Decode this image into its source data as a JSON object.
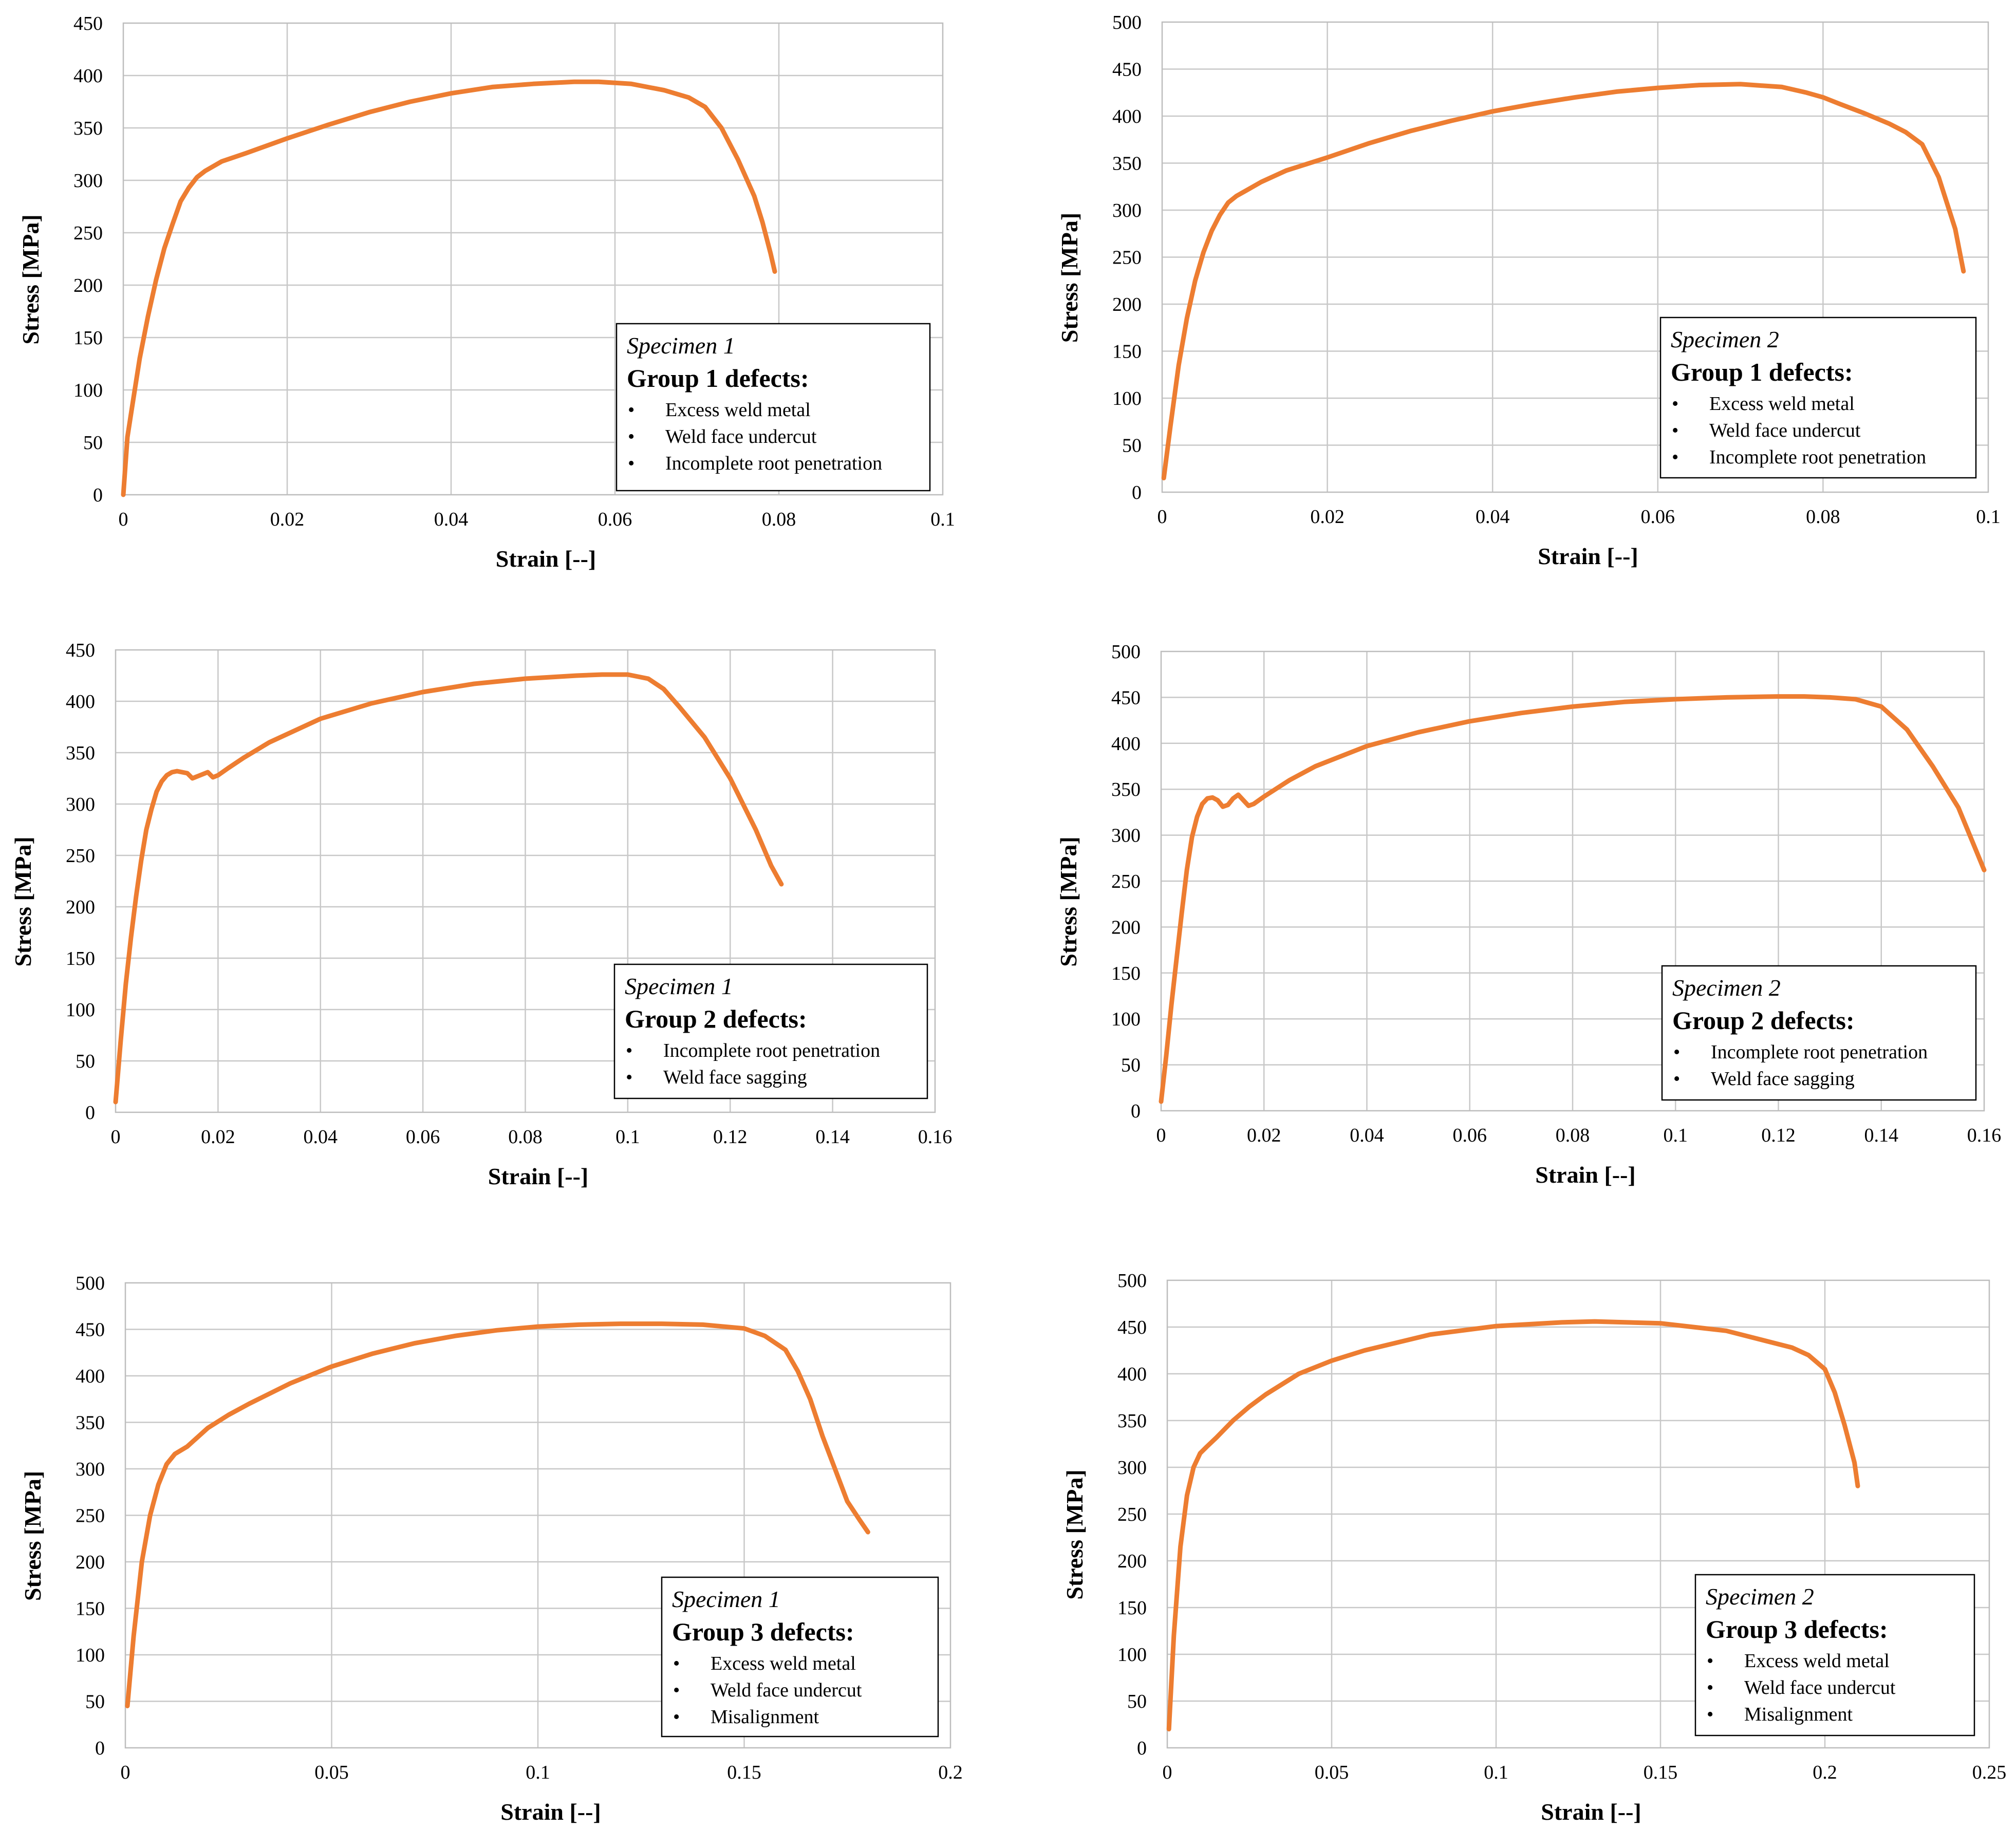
{
  "colors": {
    "curve": "#ED7D31",
    "grid": "#C8C8C8",
    "text": "#000000",
    "background": "#FFFFFF"
  },
  "chart_data": [
    {
      "type": "line",
      "xlabel": "Strain [--]",
      "ylabel": "Stress [MPa]",
      "xlim": [
        0,
        0.1
      ],
      "ylim": [
        0,
        450
      ],
      "x_ticks": [
        0,
        0.02,
        0.04,
        0.06,
        0.08,
        0.1
      ],
      "x_tick_labels": [
        "0",
        "0.02",
        "0.04",
        "0.06",
        "0.08",
        "0.1"
      ],
      "y_ticks": [
        0,
        50,
        100,
        150,
        200,
        250,
        300,
        350,
        400,
        450
      ],
      "y_tick_labels": [
        "0",
        "50",
        "100",
        "150",
        "200",
        "250",
        "300",
        "350",
        "400",
        "450"
      ],
      "grid": true,
      "legend": {
        "placement": "bottom-right",
        "specimen": "Specimen 1",
        "group": "Group 1 defects:",
        "items": [
          "Excess weld metal",
          "Weld face undercut",
          "Incomplete root penetration"
        ]
      },
      "series": [
        {
          "name": "Specimen 1",
          "x": [
            0,
            0.0005,
            0.001,
            0.002,
            0.003,
            0.004,
            0.005,
            0.006,
            0.007,
            0.008,
            0.009,
            0.01,
            0.012,
            0.015,
            0.02,
            0.025,
            0.03,
            0.035,
            0.04,
            0.045,
            0.05,
            0.055,
            0.058,
            0.062,
            0.066,
            0.069,
            0.071,
            0.073,
            0.075,
            0.077,
            0.078,
            0.079,
            0.0795
          ],
          "y": [
            0,
            55,
            80,
            130,
            170,
            205,
            235,
            258,
            280,
            293,
            303,
            309,
            318,
            326,
            340,
            353,
            365,
            375,
            383,
            389,
            392,
            394,
            394,
            392,
            386,
            379,
            370,
            350,
            320,
            285,
            260,
            230,
            213
          ]
        }
      ]
    },
    {
      "type": "line",
      "xlabel": "Strain [--]",
      "ylabel": "Stress [MPa]",
      "xlim": [
        0,
        0.1
      ],
      "ylim": [
        0,
        500
      ],
      "x_ticks": [
        0,
        0.02,
        0.04,
        0.06,
        0.08,
        0.1
      ],
      "x_tick_labels": [
        "0",
        "0.02",
        "0.04",
        "0.06",
        "0.08",
        "0.1"
      ],
      "y_ticks": [
        0,
        50,
        100,
        150,
        200,
        250,
        300,
        350,
        400,
        450,
        500
      ],
      "y_tick_labels": [
        "0",
        "50",
        "100",
        "150",
        "200",
        "250",
        "300",
        "350",
        "400",
        "450",
        "500"
      ],
      "grid": true,
      "legend": {
        "placement": "bottom-right",
        "specimen": "Specimen 2",
        "group": "Group 1 defects:",
        "items": [
          "Excess weld metal",
          "Weld face undercut",
          "Incomplete root penetration"
        ]
      },
      "series": [
        {
          "name": "Specimen 2",
          "x": [
            0.0002,
            0.001,
            0.002,
            0.003,
            0.004,
            0.005,
            0.006,
            0.007,
            0.008,
            0.009,
            0.01,
            0.012,
            0.015,
            0.02,
            0.025,
            0.03,
            0.035,
            0.04,
            0.045,
            0.05,
            0.055,
            0.06,
            0.065,
            0.07,
            0.075,
            0.078,
            0.08,
            0.082,
            0.085,
            0.088,
            0.09,
            0.092,
            0.094,
            0.096,
            0.097
          ],
          "y": [
            15,
            70,
            135,
            185,
            225,
            255,
            278,
            295,
            308,
            315,
            320,
            330,
            342,
            356,
            371,
            384,
            395,
            405,
            413,
            420,
            426,
            430,
            433,
            434,
            431,
            425,
            420,
            413,
            403,
            392,
            383,
            370,
            335,
            280,
            235
          ]
        }
      ]
    },
    {
      "type": "line",
      "xlabel": "Strain [--]",
      "ylabel": "Stress [MPa]",
      "xlim": [
        0,
        0.16
      ],
      "ylim": [
        0,
        450
      ],
      "x_ticks": [
        0,
        0.02,
        0.04,
        0.06,
        0.08,
        0.1,
        0.12,
        0.14,
        0.16
      ],
      "x_tick_labels": [
        "0",
        "0.02",
        "0.04",
        "0.06",
        "0.08",
        "0.1",
        "0.12",
        "0.14",
        "0.16"
      ],
      "y_ticks": [
        0,
        50,
        100,
        150,
        200,
        250,
        300,
        350,
        400,
        450
      ],
      "y_tick_labels": [
        "0",
        "50",
        "100",
        "150",
        "200",
        "250",
        "300",
        "350",
        "400",
        "450"
      ],
      "grid": true,
      "legend": {
        "placement": "bottom-right",
        "specimen": "Specimen 1",
        "group": "Group 2 defects:",
        "items": [
          "Incomplete root penetration",
          "Weld face sagging"
        ]
      },
      "series": [
        {
          "name": "Specimen 1",
          "x": [
            0,
            0.001,
            0.002,
            0.003,
            0.004,
            0.005,
            0.006,
            0.007,
            0.008,
            0.009,
            0.01,
            0.011,
            0.012,
            0.014,
            0.015,
            0.016,
            0.018,
            0.019,
            0.02,
            0.022,
            0.025,
            0.03,
            0.04,
            0.05,
            0.06,
            0.07,
            0.08,
            0.09,
            0.095,
            0.1,
            0.104,
            0.107,
            0.11,
            0.115,
            0.12,
            0.125,
            0.128,
            0.13
          ],
          "y": [
            10,
            70,
            125,
            170,
            210,
            245,
            275,
            295,
            312,
            322,
            328,
            331,
            332,
            330,
            325,
            327,
            331,
            326,
            328,
            335,
            345,
            360,
            383,
            398,
            409,
            417,
            422,
            425,
            426,
            426,
            422,
            412,
            395,
            365,
            325,
            275,
            240,
            222
          ]
        }
      ]
    },
    {
      "type": "line",
      "xlabel": "Strain [--]",
      "ylabel": "Stress [MPa]",
      "xlim": [
        0,
        0.16
      ],
      "ylim": [
        0,
        500
      ],
      "x_ticks": [
        0,
        0.02,
        0.04,
        0.06,
        0.08,
        0.1,
        0.12,
        0.14,
        0.16
      ],
      "x_tick_labels": [
        "0",
        "0.02",
        "0.04",
        "0.06",
        "0.08",
        "0.1",
        "0.12",
        "0.14",
        "0.16"
      ],
      "y_ticks": [
        0,
        50,
        100,
        150,
        200,
        250,
        300,
        350,
        400,
        450,
        500
      ],
      "y_tick_labels": [
        "0",
        "50",
        "100",
        "150",
        "200",
        "250",
        "300",
        "350",
        "400",
        "450",
        "500"
      ],
      "grid": true,
      "legend": {
        "placement": "bottom-right",
        "specimen": "Specimen 2",
        "group": "Group 2 defects:",
        "items": [
          "Incomplete root penetration",
          "Weld face sagging"
        ]
      },
      "series": [
        {
          "name": "Specimen 2",
          "x": [
            0,
            0.001,
            0.002,
            0.003,
            0.004,
            0.005,
            0.006,
            0.007,
            0.008,
            0.009,
            0.01,
            0.011,
            0.012,
            0.013,
            0.014,
            0.015,
            0.016,
            0.017,
            0.018,
            0.02,
            0.025,
            0.03,
            0.04,
            0.05,
            0.06,
            0.07,
            0.08,
            0.09,
            0.1,
            0.11,
            0.12,
            0.125,
            0.13,
            0.135,
            0.14,
            0.145,
            0.15,
            0.155,
            0.16
          ],
          "y": [
            10,
            60,
            115,
            165,
            215,
            262,
            298,
            320,
            334,
            340,
            341,
            338,
            331,
            333,
            340,
            344,
            338,
            332,
            334,
            342,
            360,
            375,
            397,
            412,
            424,
            433,
            440,
            445,
            448,
            450,
            451,
            451,
            450,
            448,
            440,
            415,
            375,
            330,
            262
          ]
        }
      ]
    },
    {
      "type": "line",
      "xlabel": "Strain [--]",
      "ylabel": "Stress [MPa]",
      "xlim": [
        0,
        0.2
      ],
      "ylim": [
        0,
        500
      ],
      "x_ticks": [
        0,
        0.05,
        0.1,
        0.15,
        0.2
      ],
      "x_tick_labels": [
        "0",
        "0.05",
        "0.1",
        "0.15",
        "0.2"
      ],
      "y_ticks": [
        0,
        50,
        100,
        150,
        200,
        250,
        300,
        350,
        400,
        450,
        500
      ],
      "y_tick_labels": [
        "0",
        "50",
        "100",
        "150",
        "200",
        "250",
        "300",
        "350",
        "400",
        "450",
        "500"
      ],
      "grid": true,
      "legend": {
        "placement": "bottom-right",
        "specimen": "Specimen 1",
        "group": "Group 3 defects:",
        "items": [
          "Excess weld metal",
          "Weld face undercut",
          "Misalignment"
        ]
      },
      "series": [
        {
          "name": "Specimen 1",
          "x": [
            0.0005,
            0.002,
            0.004,
            0.006,
            0.008,
            0.01,
            0.012,
            0.015,
            0.02,
            0.025,
            0.03,
            0.04,
            0.05,
            0.06,
            0.07,
            0.08,
            0.09,
            0.1,
            0.11,
            0.12,
            0.13,
            0.14,
            0.15,
            0.155,
            0.16,
            0.163,
            0.166,
            0.169,
            0.172,
            0.175,
            0.178,
            0.18
          ],
          "y": [
            45,
            120,
            200,
            250,
            283,
            305,
            316,
            324,
            344,
            358,
            370,
            392,
            410,
            424,
            435,
            443,
            449,
            453,
            455,
            456,
            456,
            455,
            451,
            443,
            428,
            405,
            375,
            335,
            300,
            265,
            245,
            232
          ]
        }
      ]
    },
    {
      "type": "line",
      "xlabel": "Strain [--]",
      "ylabel": "Stress [MPa]",
      "xlim": [
        0,
        0.25
      ],
      "ylim": [
        0,
        500
      ],
      "x_ticks": [
        0,
        0.05,
        0.1,
        0.15,
        0.2,
        0.25
      ],
      "x_tick_labels": [
        "0",
        "0.05",
        "0.1",
        "0.15",
        "0.2",
        "0.25"
      ],
      "y_ticks": [
        0,
        50,
        100,
        150,
        200,
        250,
        300,
        350,
        400,
        450,
        500
      ],
      "y_tick_labels": [
        "0",
        "50",
        "100",
        "150",
        "200",
        "250",
        "300",
        "350",
        "400",
        "450",
        "500"
      ],
      "grid": true,
      "legend": {
        "placement": "bottom-right",
        "specimen": "Specimen 2",
        "group": "Group 3 defects:",
        "items": [
          "Excess weld metal",
          "Weld face undercut",
          "Misalignment"
        ]
      },
      "series": [
        {
          "name": "Specimen 2",
          "x": [
            0.0005,
            0.002,
            0.004,
            0.006,
            0.008,
            0.01,
            0.012,
            0.015,
            0.02,
            0.025,
            0.03,
            0.04,
            0.05,
            0.06,
            0.08,
            0.1,
            0.12,
            0.13,
            0.15,
            0.17,
            0.19,
            0.195,
            0.2,
            0.203,
            0.206,
            0.209,
            0.21
          ],
          "y": [
            20,
            120,
            215,
            270,
            300,
            315,
            322,
            332,
            350,
            365,
            378,
            400,
            414,
            425,
            442,
            451,
            455,
            456,
            454,
            446,
            428,
            420,
            405,
            380,
            345,
            305,
            280
          ]
        }
      ]
    }
  ]
}
